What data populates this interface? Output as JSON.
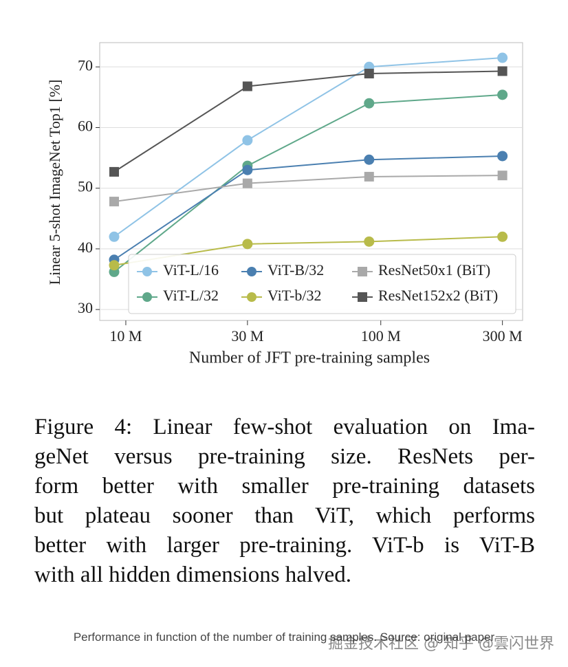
{
  "chart_data": {
    "type": "line",
    "x_log": true,
    "grid": true,
    "legend": "lower right",
    "legend_rows": 2,
    "ylabel": "Linear 5-shot ImageNet Top1 [%]",
    "xlabel": "Number of JFT pre-training samples",
    "x": [
      9,
      30,
      90,
      300
    ],
    "xlim": [
      7.9,
      360
    ],
    "xticks": [
      {
        "value": 10,
        "label": "10 M"
      },
      {
        "value": 30,
        "label": "30 M"
      },
      {
        "value": 100,
        "label": "100 M"
      },
      {
        "value": 300,
        "label": "300 M"
      }
    ],
    "ylim": [
      28.2,
      74
    ],
    "yticks": [
      30,
      40,
      50,
      60,
      70
    ],
    "series": [
      {
        "name": "ViT-L/16",
        "color": "#8fc3e6",
        "marker": "circle",
        "values": [
          42.0,
          57.9,
          70.0,
          71.5
        ]
      },
      {
        "name": "ViT-L/32",
        "color": "#5fa88a",
        "marker": "circle",
        "values": [
          36.2,
          53.7,
          64.0,
          65.4
        ]
      },
      {
        "name": "ViT-B/32",
        "color": "#4a7fb0",
        "marker": "circle",
        "values": [
          38.2,
          53.0,
          54.7,
          55.3
        ]
      },
      {
        "name": "ViT-b/32",
        "color": "#b8bb4a",
        "marker": "circle",
        "values": [
          37.3,
          40.8,
          41.2,
          42.0
        ]
      },
      {
        "name": "ResNet50x1 (BiT)",
        "color": "#a9a9a9",
        "marker": "square",
        "values": [
          47.8,
          50.8,
          51.9,
          52.1
        ]
      },
      {
        "name": "ResNet152x2 (BiT)",
        "color": "#555555",
        "marker": "square",
        "values": [
          52.7,
          66.8,
          68.9,
          69.3
        ]
      }
    ]
  },
  "caption": {
    "lines": [
      "Figure 4: Linear few-shot evaluation on Ima-",
      "geNet versus pre-training size.  ResNets per-",
      "form better with smaller pre-training datasets",
      "but plateau sooner than ViT, which performs",
      "better with larger pre-training. ViT-b is ViT-B",
      "with all hidden dimensions halved."
    ]
  },
  "footer": {
    "text": "Performance in function of the number of training samples. Source: original paper",
    "watermark": "掘金技术社区 @ 知乎 @雲闪世界"
  }
}
